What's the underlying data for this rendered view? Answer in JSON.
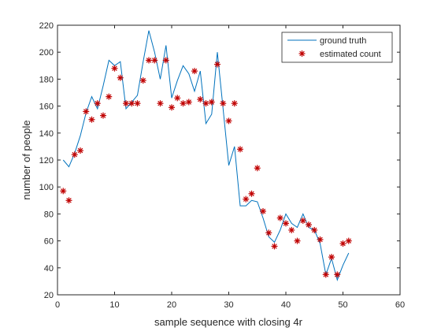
{
  "chart_data": {
    "type": "line",
    "xlabel": "sample sequence with closing 4r",
    "ylabel": "number of people",
    "xlim": [
      0,
      60
    ],
    "ylim": [
      20,
      220
    ],
    "xticks": [
      0,
      10,
      20,
      30,
      40,
      50,
      60
    ],
    "yticks": [
      20,
      40,
      60,
      80,
      100,
      120,
      140,
      160,
      180,
      200,
      220
    ],
    "grid": false,
    "legend_position": "top-right",
    "series": [
      {
        "name": "ground truth",
        "style": "line",
        "color": "#0072BD",
        "x": [
          1,
          2,
          3,
          4,
          5,
          6,
          7,
          8,
          9,
          10,
          11,
          12,
          13,
          14,
          15,
          16,
          17,
          18,
          19,
          20,
          21,
          22,
          23,
          24,
          25,
          26,
          27,
          28,
          29,
          30,
          31,
          32,
          33,
          34,
          35,
          36,
          37,
          38,
          39,
          40,
          41,
          42,
          43,
          44,
          45,
          46,
          47,
          48,
          49,
          50,
          51
        ],
        "y": [
          120,
          115,
          125,
          138,
          155,
          167,
          158,
          175,
          194,
          190,
          193,
          158,
          163,
          168,
          193,
          216,
          200,
          180,
          205,
          166,
          179,
          190,
          184,
          171,
          186,
          147,
          154,
          200,
          158,
          116,
          130,
          86,
          86,
          90,
          89,
          77,
          63,
          59,
          68,
          80,
          73,
          70,
          80,
          70,
          68,
          58,
          35,
          47,
          31,
          42,
          51
        ]
      },
      {
        "name": "estimated count",
        "style": "marker",
        "marker": "*",
        "color": "#C00000",
        "x": [
          1,
          2,
          3,
          4,
          5,
          6,
          7,
          8,
          9,
          10,
          11,
          12,
          13,
          14,
          15,
          16,
          17,
          18,
          19,
          20,
          21,
          22,
          23,
          24,
          25,
          26,
          27,
          28,
          29,
          30,
          31,
          32,
          33,
          34,
          35,
          36,
          37,
          38,
          39,
          40,
          41,
          42,
          43,
          44,
          45,
          46,
          47,
          48,
          49,
          50,
          51
        ],
        "y": [
          97,
          90,
          124,
          127,
          156,
          150,
          162,
          153,
          167,
          188,
          181,
          162,
          162,
          162,
          179,
          194,
          194,
          162,
          194,
          159,
          166,
          162,
          163,
          186,
          165,
          162,
          163,
          191,
          162,
          149,
          162,
          128,
          91,
          95,
          114,
          82,
          66,
          56,
          77,
          73,
          68,
          60,
          75,
          72,
          68,
          61,
          35,
          48,
          35,
          58,
          60
        ]
      }
    ]
  }
}
